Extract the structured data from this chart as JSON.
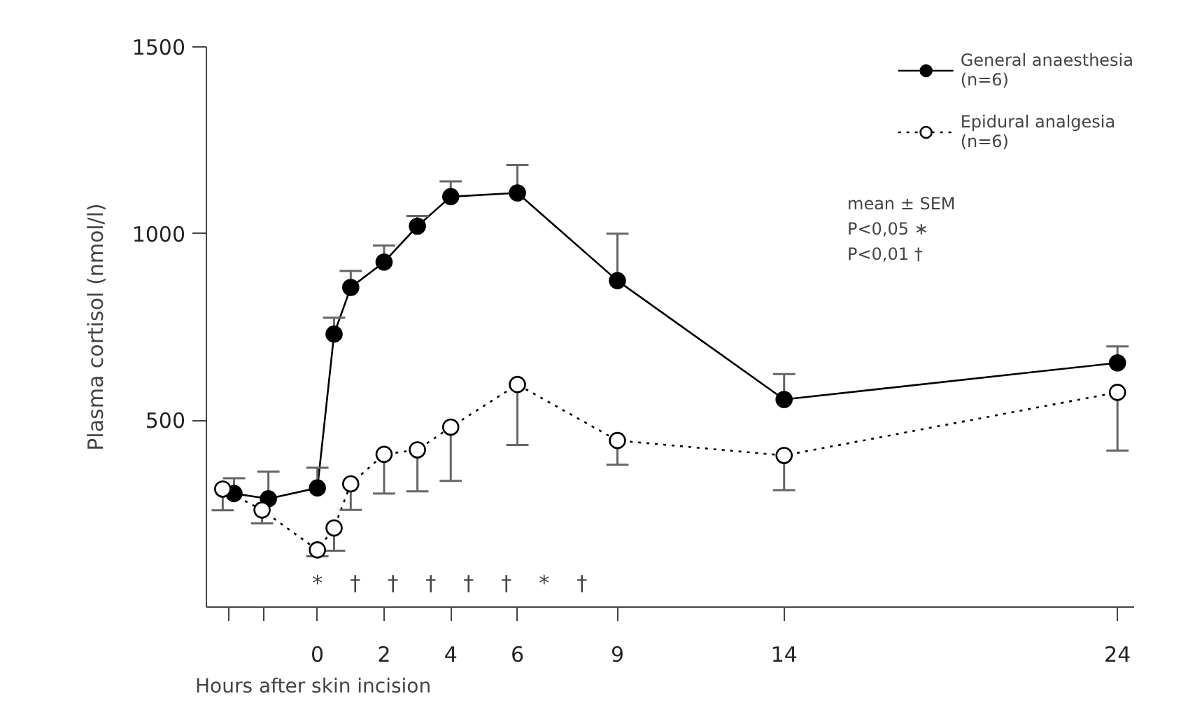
{
  "chart_data": {
    "type": "line",
    "ylabel": "Plasma cortisol (nmol/l)",
    "xlabel": "Hours after skin incision",
    "x": [
      -2.5,
      -1.47,
      0,
      0.5,
      1,
      2,
      3,
      4,
      6,
      9,
      14,
      24
    ],
    "series": [
      {
        "name": "General anaesthesia\n(n=6)",
        "color": "#000000",
        "marker": "circle",
        "line_style": "solid",
        "values": [
          304,
          290,
          319,
          731,
          856,
          924,
          1020,
          1099,
          1109,
          874,
          556,
          654
        ],
        "errors": [
          [
            304,
            345
          ],
          [
            290,
            363
          ],
          [
            319,
            373
          ],
          [
            731,
            775
          ],
          [
            856,
            900
          ],
          [
            924,
            968
          ],
          [
            1020,
            1047
          ],
          [
            1099,
            1140
          ],
          [
            1109,
            1184
          ],
          [
            874,
            1000
          ],
          [
            556,
            624
          ],
          [
            654,
            698
          ]
        ]
      },
      {
        "name": "Epidural analgesia\n(n=6)",
        "color": "#000000",
        "marker": "circle_open",
        "line_style": "dotted",
        "x": [
          -2.84,
          -1.66,
          0,
          0.5,
          1,
          2,
          3,
          4,
          6,
          9,
          14,
          24
        ],
        "values": [
          316,
          260,
          153,
          212,
          330,
          409,
          421,
          482,
          596,
          446,
          406,
          575
        ],
        "errors": [
          [
            259,
            316
          ],
          [
            224,
            260
          ],
          [
            136,
            153
          ],
          [
            151,
            212
          ],
          [
            260,
            330
          ],
          [
            304,
            409
          ],
          [
            310,
            421
          ],
          [
            338,
            482
          ],
          [
            434,
            596
          ],
          [
            381,
            446
          ],
          [
            313,
            406
          ],
          [
            419,
            575
          ]
        ]
      }
    ],
    "xlim": [
      -3.33,
      24.5
    ],
    "ylim": [
      0,
      1500
    ],
    "xticks": [
      {
        "value": -2.67,
        "label": null
      },
      {
        "value": -1.6,
        "label": null
      },
      0,
      2,
      4,
      6,
      9,
      14,
      24
    ],
    "yticks": [
      500,
      1000,
      1500
    ],
    "grid": false,
    "legend": "top right",
    "annotations": [
      "*",
      "†",
      "†",
      "†",
      "†",
      "†",
      "*",
      "†",
      "mean ± SEM",
      "P<0,05 ∗",
      "P<0,01 †"
    ]
  }
}
